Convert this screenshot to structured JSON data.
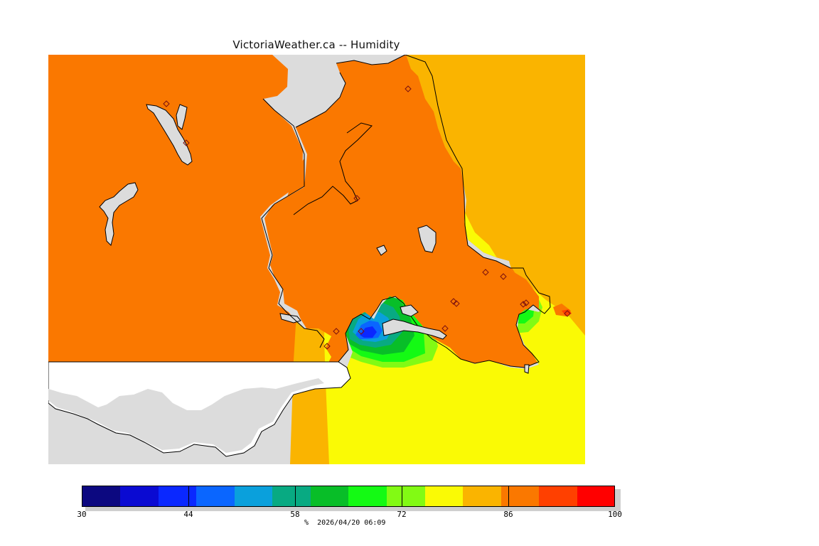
{
  "title": "VictoriaWeather.ca -- Humidity",
  "colorbar": {
    "min": 30,
    "max": 100,
    "step": 5,
    "colors": [
      "#0c0880",
      "#0a0ad2",
      "#0a28ff",
      "#0a66ff",
      "#0aa0dc",
      "#08aa82",
      "#08be28",
      "#14fa14",
      "#82fa14",
      "#fafa05",
      "#fab400",
      "#fa7800",
      "#ff4000",
      "#ff0000"
    ],
    "labels": [
      "30",
      "44",
      "58",
      "72",
      "86",
      "100"
    ],
    "label_values": [
      30,
      44,
      58,
      72,
      86,
      100
    ]
  },
  "footer": {
    "unit": "%",
    "timestamp": "2026/04/20 06:09"
  },
  "map": {
    "sea_color": "#dcdcdc",
    "outside_land_color": "#ffffff",
    "stations_count_visible": 12
  }
}
